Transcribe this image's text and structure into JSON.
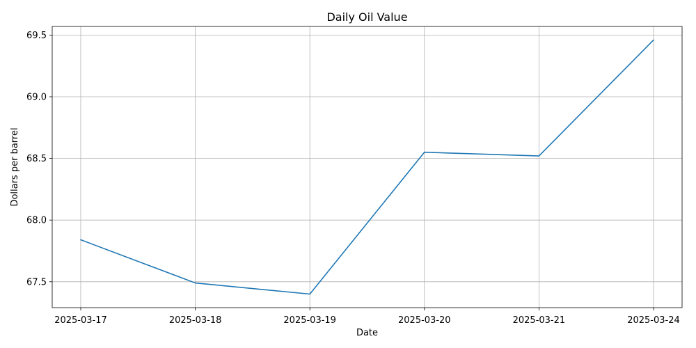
{
  "chart_data": {
    "type": "line",
    "title": "Daily Oil Value",
    "xlabel": "Date",
    "ylabel": "Dollars per barrel",
    "categories": [
      "2025-03-17",
      "2025-03-18",
      "2025-03-19",
      "2025-03-20",
      "2025-03-21",
      "2025-03-24"
    ],
    "series": [
      {
        "values": [
          67.84,
          67.49,
          67.4,
          68.55,
          68.52,
          69.46
        ]
      }
    ],
    "ylim": [
      67.29,
      69.57
    ],
    "yticks": [
      67.5,
      68.0,
      68.5,
      69.0,
      69.5
    ],
    "ytick_labels": [
      "67.5",
      "68.0",
      "68.5",
      "69.0",
      "69.5"
    ],
    "grid": true,
    "colors": {
      "line": "#1f77b4"
    }
  }
}
